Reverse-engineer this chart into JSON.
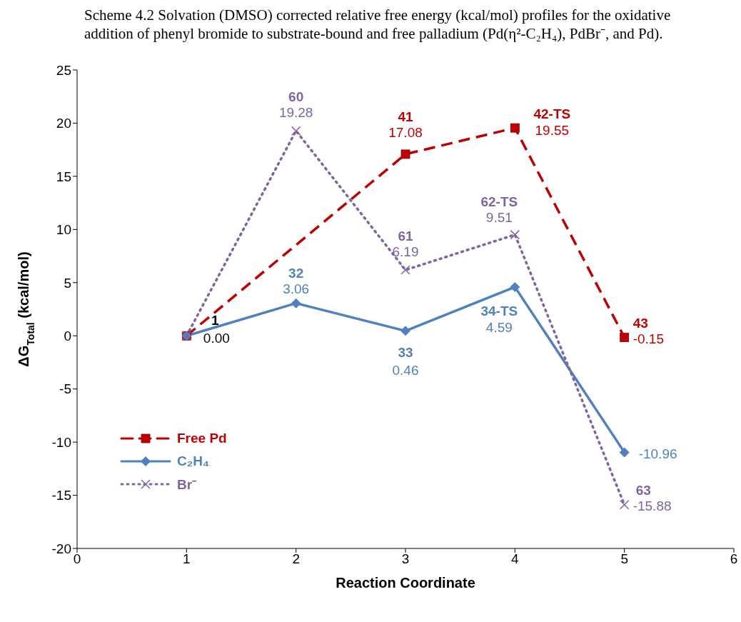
{
  "chart_data": {
    "type": "line",
    "title": "Scheme 4.2 Solvation (DMSO) corrected relative free energy (kcal/mol) profiles for the oxidative addition of phenyl bromide to substrate-bound and free palladium (Pd(η²-C₂H₄), PdBr⁻, and Pd).",
    "xlabel": "Reaction Coordinate",
    "ylabel": "ΔG$_{Total}$ (kcal/mol)",
    "x": [
      1,
      2,
      3,
      4,
      5
    ],
    "series": [
      {
        "name": "Free Pd",
        "color": "#c00000",
        "x": [
          1,
          3,
          4,
          5
        ],
        "values": [
          0.0,
          17.08,
          19.55,
          -0.15
        ],
        "value_labels": [
          null,
          "17.08",
          "19.55",
          "-0.15"
        ],
        "marker": "square",
        "line_style": "dashed"
      },
      {
        "name": "C₂H₄",
        "color": "#4f81bd",
        "values": [
          0.0,
          3.06,
          0.46,
          4.59,
          -10.96
        ],
        "value_labels": [
          null,
          "3.06",
          "0.46",
          "4.59",
          "-10.96"
        ],
        "marker": "diamond",
        "line_style": "solid"
      },
      {
        "name": "Br⁻",
        "color": "#8064a2",
        "values": [
          0.0,
          19.28,
          6.19,
          9.51,
          -15.88
        ],
        "value_labels": [
          null,
          "19.28",
          "6.19",
          "9.51",
          "-15.88"
        ],
        "marker": "cross",
        "line_style": "dotted"
      }
    ],
    "annotations": [
      {
        "text": "1",
        "x": 1,
        "y": 0
      },
      {
        "text": "0.00",
        "x": 1,
        "y": 0
      },
      {
        "text": "41",
        "x": 3,
        "y": 17.08
      },
      {
        "text": "42-TS",
        "x": 4,
        "y": 19.55
      },
      {
        "text": "43",
        "x": 5,
        "y": -0.15
      },
      {
        "text": "32",
        "x": 2,
        "y": 3.06
      },
      {
        "text": "33",
        "x": 3,
        "y": 0.46
      },
      {
        "text": "34-TS",
        "x": 4,
        "y": 4.59
      },
      {
        "text": "60",
        "x": 2,
        "y": 19.28
      },
      {
        "text": "61",
        "x": 3,
        "y": 6.19
      },
      {
        "text": "62-TS",
        "x": 4,
        "y": 9.51
      },
      {
        "text": "63",
        "x": 5,
        "y": -15.88
      }
    ],
    "xlim": [
      0,
      6
    ],
    "xticks": [
      0,
      1,
      2,
      3,
      4,
      5,
      6
    ],
    "ylim": [
      -20,
      25
    ],
    "yticks": [
      -20,
      -15,
      -10,
      -5,
      0,
      5,
      10,
      15,
      20,
      25
    ],
    "grid": false,
    "legend": "bottom left"
  }
}
